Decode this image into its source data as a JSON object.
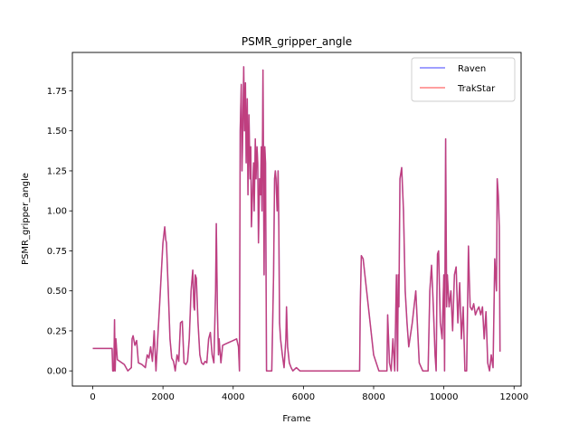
{
  "chart_data": {
    "type": "line",
    "title": "PSMR_gripper_angle",
    "xlabel": "Frame",
    "ylabel": "PSMR_gripper_angle",
    "xlim": [
      -580,
      12200
    ],
    "ylim": [
      -0.095,
      1.99
    ],
    "xticks": [
      0,
      2000,
      4000,
      6000,
      8000,
      10000,
      12000
    ],
    "yticks": [
      0.0,
      0.25,
      0.5,
      0.75,
      1.0,
      1.25,
      1.5,
      1.75
    ],
    "ytick_labels": [
      "0.00",
      "0.25",
      "0.50",
      "0.75",
      "1.00",
      "1.25",
      "1.50",
      "1.75"
    ],
    "legend_location": "upper right",
    "series": [
      {
        "name": "Raven",
        "color": "#0000ff",
        "x": [
          0,
          300,
          550,
          570,
          600,
          620,
          640,
          660,
          700,
          900,
          1000,
          1100,
          1120,
          1150,
          1200,
          1250,
          1300,
          1400,
          1500,
          1550,
          1600,
          1650,
          1700,
          1750,
          1800,
          1850,
          1900,
          1950,
          2000,
          2050,
          2080,
          2100,
          2150,
          2200,
          2250,
          2300,
          2350,
          2400,
          2450,
          2500,
          2550,
          2600,
          2650,
          2700,
          2750,
          2800,
          2850,
          2880,
          2900,
          2920,
          2950,
          3000,
          3050,
          3100,
          3150,
          3200,
          3250,
          3300,
          3350,
          3400,
          3450,
          3500,
          3520,
          3550,
          3580,
          3600,
          3650,
          3700,
          3800,
          3900,
          4000,
          4100,
          4150,
          4180,
          4200,
          4230,
          4250,
          4270,
          4300,
          4320,
          4350,
          4370,
          4400,
          4420,
          4450,
          4480,
          4500,
          4520,
          4550,
          4580,
          4600,
          4630,
          4650,
          4680,
          4700,
          4720,
          4750,
          4780,
          4800,
          4820,
          4850,
          4880,
          4900,
          4920,
          4950,
          4980,
          5000,
          5050,
          5100,
          5150,
          5180,
          5200,
          5220,
          5250,
          5280,
          5300,
          5320,
          5350,
          5400,
          5450,
          5500,
          5520,
          5550,
          5600,
          5650,
          5700,
          5800,
          5900,
          6000,
          6100,
          6200,
          6500,
          7000,
          7500,
          7550,
          7580,
          7600,
          7620,
          7650,
          7700,
          8000,
          8150,
          8200,
          8250,
          8300,
          8350,
          8380,
          8400,
          8450,
          8500,
          8550,
          8600,
          8650,
          8680,
          8700,
          8720,
          8750,
          8800,
          8850,
          8900,
          8950,
          9000,
          9100,
          9200,
          9300,
          9400,
          9450,
          9500,
          9550,
          9600,
          9650,
          9700,
          9750,
          9780,
          9800,
          9820,
          9850,
          9900,
          9950,
          10000,
          10020,
          10050,
          10080,
          10100,
          10150,
          10200,
          10250,
          10300,
          10350,
          10400,
          10450,
          10500,
          10550,
          10600,
          10650,
          10700,
          10720,
          10750,
          10800,
          10850,
          10900,
          10950,
          11000,
          11050,
          11100,
          11150,
          11200,
          11250,
          11300,
          11350,
          11400,
          11450,
          11500,
          11520,
          11550,
          11580,
          11600
        ],
        "y": [
          0.14,
          0.14,
          0.14,
          0.0,
          0.0,
          0.32,
          0.0,
          0.2,
          0.07,
          0.04,
          0.0,
          0.02,
          0.2,
          0.22,
          0.16,
          0.19,
          0.05,
          0.04,
          0.02,
          0.1,
          0.08,
          0.15,
          0.06,
          0.25,
          0.0,
          0.2,
          0.4,
          0.6,
          0.8,
          0.9,
          0.82,
          0.8,
          0.5,
          0.2,
          0.08,
          0.06,
          0.0,
          0.1,
          0.06,
          0.3,
          0.31,
          0.05,
          0.04,
          0.06,
          0.2,
          0.5,
          0.63,
          0.4,
          0.38,
          0.6,
          0.58,
          0.3,
          0.1,
          0.05,
          0.04,
          0.06,
          0.05,
          0.2,
          0.24,
          0.1,
          0.05,
          0.5,
          0.92,
          0.38,
          0.1,
          0.2,
          0.05,
          0.16,
          0.17,
          0.18,
          0.19,
          0.2,
          0.15,
          0.0,
          1.5,
          1.79,
          1.25,
          1.45,
          1.9,
          1.5,
          1.8,
          1.3,
          1.7,
          1.1,
          1.6,
          1.2,
          1.4,
          0.9,
          1.1,
          1.3,
          1.0,
          1.45,
          1.2,
          1.4,
          1.3,
          0.8,
          1.2,
          1.1,
          1.4,
          1.0,
          1.88,
          0.6,
          1.4,
          1.3,
          0.0,
          0.0,
          0.0,
          0.0,
          0.0,
          0.6,
          1.2,
          1.25,
          1.2,
          1.0,
          1.25,
          0.9,
          0.3,
          0.2,
          0.1,
          0.02,
          0.2,
          0.4,
          0.15,
          0.05,
          0.02,
          0.0,
          0.02,
          0.0,
          0.0,
          0.0,
          0.0,
          0.0,
          0.0,
          0.0,
          0.0,
          0.0,
          0.0,
          0.4,
          0.72,
          0.7,
          0.1,
          0.0,
          0.0,
          0.0,
          0.0,
          0.0,
          0.0,
          0.35,
          0.05,
          0.0,
          0.2,
          0.0,
          0.6,
          0.0,
          0.6,
          0.4,
          1.2,
          1.27,
          1.0,
          0.5,
          0.3,
          0.15,
          0.3,
          0.5,
          0.05,
          0.0,
          0.0,
          0.0,
          0.0,
          0.5,
          0.66,
          0.4,
          0.1,
          0.0,
          0.45,
          0.73,
          0.75,
          0.3,
          0.2,
          0.6,
          0.0,
          1.45,
          0.4,
          0.6,
          0.4,
          0.5,
          0.25,
          0.6,
          0.65,
          0.3,
          0.55,
          0.2,
          0.4,
          0.0,
          0.0,
          0.78,
          0.6,
          0.4,
          0.38,
          0.42,
          0.35,
          0.38,
          0.4,
          0.35,
          0.4,
          0.2,
          0.37,
          0.05,
          0.0,
          0.1,
          0.02,
          0.7,
          0.5,
          1.2,
          1.1,
          0.9,
          0.12
        ]
      },
      {
        "name": "TrakStar",
        "color": "#ff0000"
      }
    ]
  }
}
